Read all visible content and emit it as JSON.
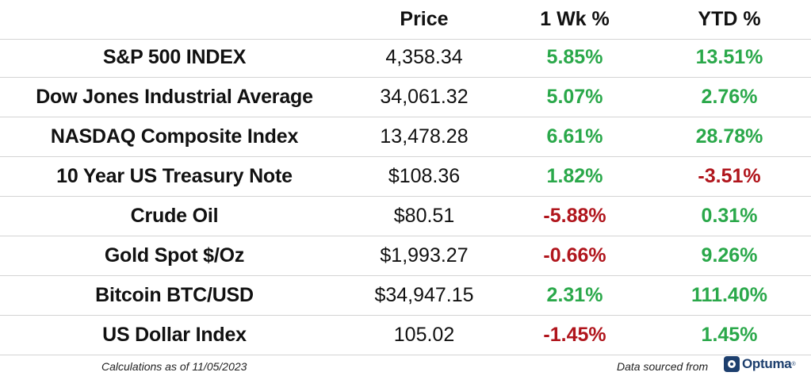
{
  "header": {
    "col0": "",
    "price": "Price",
    "week": "1 Wk %",
    "ytd": "YTD %"
  },
  "rows": [
    {
      "name": "S&P 500 INDEX",
      "price": "4,358.34",
      "week": "5.85%",
      "week_dir": "pos",
      "ytd": "13.51%",
      "ytd_dir": "pos"
    },
    {
      "name": "Dow Jones Industrial Average",
      "price": "34,061.32",
      "week": "5.07%",
      "week_dir": "pos",
      "ytd": "2.76%",
      "ytd_dir": "pos"
    },
    {
      "name": "NASDAQ Composite Index",
      "price": "13,478.28",
      "week": "6.61%",
      "week_dir": "pos",
      "ytd": "28.78%",
      "ytd_dir": "pos"
    },
    {
      "name": "10 Year US Treasury Note",
      "price": "$108.36",
      "week": "1.82%",
      "week_dir": "pos",
      "ytd": "-3.51%",
      "ytd_dir": "neg"
    },
    {
      "name": "Crude Oil",
      "price": "$80.51",
      "week": "-5.88%",
      "week_dir": "neg",
      "ytd": "0.31%",
      "ytd_dir": "pos"
    },
    {
      "name": "Gold Spot $/Oz",
      "price": "$1,993.27",
      "week": "-0.66%",
      "week_dir": "neg",
      "ytd": "9.26%",
      "ytd_dir": "pos"
    },
    {
      "name": "Bitcoin BTC/USD",
      "price": "$34,947.15",
      "week": "2.31%",
      "week_dir": "pos",
      "ytd": "111.40%",
      "ytd_dir": "pos"
    },
    {
      "name": "US Dollar Index",
      "price": "105.02",
      "week": "-1.45%",
      "week_dir": "neg",
      "ytd": "1.45%",
      "ytd_dir": "pos"
    }
  ],
  "footer": {
    "calc_note": "Calculations as of 11/05/2023",
    "source_note": "Data sourced from",
    "logo_text": "Optuma",
    "logo_tm": "®",
    "logo_icon": "optuma-logo-icon"
  },
  "colors": {
    "positive": "#2aa84a",
    "negative": "#b0151c",
    "logo": "#1d3f6e"
  }
}
